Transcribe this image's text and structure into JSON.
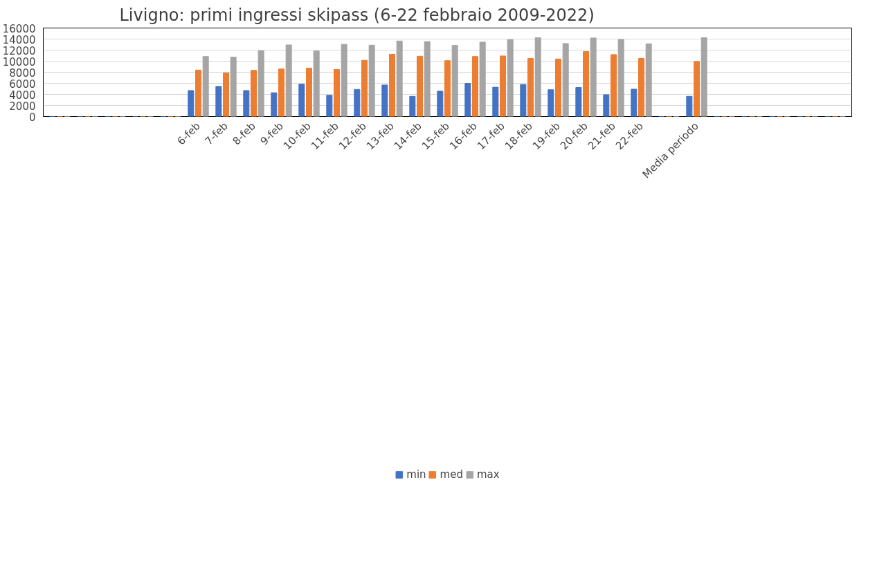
{
  "chart_data": {
    "type": "bar",
    "title": "Livigno: primi ingressi skipass (6-22 febbraio 2009-2022)",
    "categories": [
      null,
      null,
      null,
      null,
      null,
      "6-feb",
      "7-feb",
      "8-feb",
      "9-feb",
      "10-feb",
      "11-feb",
      "12-feb",
      "13-feb",
      "14-feb",
      "15-feb",
      "16-feb",
      "17-feb",
      "18-feb",
      "19-feb",
      "20-feb",
      "21-feb",
      "22-feb",
      null,
      "Media periodo",
      null,
      null,
      null,
      null,
      null
    ],
    "series": [
      {
        "name": "min",
        "color": "#4472c4",
        "values": [
          0,
          0,
          0,
          0,
          0,
          4700,
          5450,
          4700,
          4300,
          5850,
          3850,
          4900,
          5700,
          3650,
          4600,
          6000,
          5300,
          5800,
          4850,
          5250,
          3950,
          4950,
          0,
          3650,
          0,
          0,
          0,
          0,
          0
        ]
      },
      {
        "name": "med",
        "color": "#ed7d31",
        "values": [
          0,
          0,
          0,
          0,
          0,
          8400,
          7900,
          8350,
          8600,
          8750,
          8500,
          10150,
          11250,
          10900,
          10100,
          10850,
          10950,
          10500,
          10400,
          11750,
          11200,
          10500,
          0,
          9950,
          0,
          0,
          0,
          0,
          0
        ]
      },
      {
        "name": "max",
        "color": "#a5a5a5",
        "values": [
          0,
          0,
          0,
          0,
          0,
          10850,
          10750,
          11900,
          12950,
          11850,
          13050,
          12900,
          13650,
          13550,
          12850,
          13450,
          13900,
          14250,
          13200,
          14200,
          13950,
          13150,
          0,
          14250,
          0,
          0,
          0,
          0,
          0
        ]
      }
    ],
    "ylim": [
      0,
      16000
    ],
    "yticks": [
      0,
      2000,
      4000,
      6000,
      8000,
      10000,
      12000,
      14000,
      16000
    ],
    "grid": "y",
    "legend": "bottom"
  }
}
